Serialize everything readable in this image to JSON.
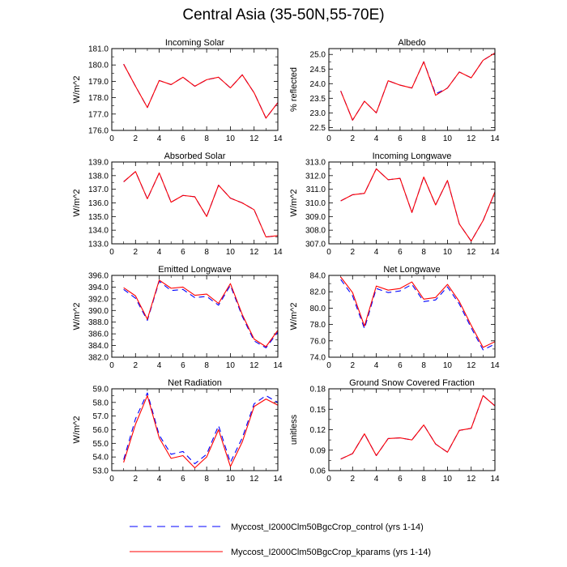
{
  "figure": {
    "title": "Central Asia (35-50N,55-70E)"
  },
  "colors": {
    "control": "#0000ff",
    "kparams": "#ff0000",
    "axis": "#000000"
  },
  "legend": [
    {
      "label": "Myccost_I2000Clm50BgcCrop_control (yrs 1-14)",
      "style": "dashed",
      "color": "#0000ff"
    },
    {
      "label": "Myccost_I2000Clm50BgcCrop_kparams (yrs 1-14)",
      "style": "solid",
      "color": "#ff0000"
    }
  ],
  "chart_data": [
    {
      "type": "line",
      "title": "Incoming Solar",
      "ylabel": "W/m^2",
      "xlim": [
        0,
        14
      ],
      "ylim": [
        176.0,
        181.0
      ],
      "xticks": [
        0,
        2,
        4,
        6,
        8,
        10,
        12,
        14
      ],
      "yticks": [
        "176.0",
        "177.0",
        "178.0",
        "179.0",
        "180.0",
        "181.0"
      ],
      "x": [
        1,
        2,
        3,
        4,
        5,
        6,
        7,
        8,
        9,
        10,
        11,
        12,
        13,
        14
      ],
      "series": [
        {
          "name": "Myccost_I2000Clm50BgcCrop_control (yrs 1-14)",
          "values": [
            180.05,
            178.7,
            177.4,
            179.05,
            178.8,
            179.25,
            178.7,
            179.1,
            179.25,
            178.6,
            179.4,
            178.3,
            176.75,
            177.7
          ]
        },
        {
          "name": "Myccost_I2000Clm50BgcCrop_kparams (yrs 1-14)",
          "values": [
            180.05,
            178.7,
            177.4,
            179.05,
            178.8,
            179.25,
            178.7,
            179.1,
            179.25,
            178.6,
            179.4,
            178.3,
            176.75,
            177.7
          ]
        }
      ]
    },
    {
      "type": "line",
      "title": "Albedo",
      "ylabel": "% reflected",
      "xlim": [
        0,
        14
      ],
      "ylim": [
        22.4,
        25.2
      ],
      "xticks": [
        0,
        2,
        4,
        6,
        8,
        10,
        12,
        14
      ],
      "yticks": [
        "22.5",
        "23.0",
        "23.5",
        "24.0",
        "24.5",
        "25.0"
      ],
      "x": [
        1,
        2,
        3,
        4,
        5,
        6,
        7,
        8,
        9,
        10,
        11,
        12,
        13,
        14
      ],
      "series": [
        {
          "name": "Myccost_I2000Clm50BgcCrop_control (yrs 1-14)",
          "values": [
            23.75,
            22.75,
            23.4,
            23.0,
            24.1,
            23.95,
            23.85,
            24.75,
            23.65,
            23.85,
            24.4,
            24.2,
            24.8,
            25.05
          ]
        },
        {
          "name": "Myccost_I2000Clm50BgcCrop_kparams (yrs 1-14)",
          "values": [
            23.75,
            22.75,
            23.4,
            23.0,
            24.1,
            23.95,
            23.85,
            24.75,
            23.6,
            23.85,
            24.4,
            24.2,
            24.8,
            25.05
          ]
        }
      ]
    },
    {
      "type": "line",
      "title": "Absorbed Solar",
      "ylabel": "W/m^2",
      "xlim": [
        0,
        14
      ],
      "ylim": [
        133.0,
        139.0
      ],
      "xticks": [
        0,
        2,
        4,
        6,
        8,
        10,
        12,
        14
      ],
      "yticks": [
        "133.0",
        "134.0",
        "135.0",
        "136.0",
        "137.0",
        "138.0",
        "139.0"
      ],
      "x": [
        1,
        2,
        3,
        4,
        5,
        6,
        7,
        8,
        9,
        10,
        11,
        12,
        13,
        14
      ],
      "series": [
        {
          "name": "Myccost_I2000Clm50BgcCrop_control (yrs 1-14)",
          "values": [
            137.55,
            138.3,
            136.3,
            138.2,
            136.05,
            136.55,
            136.45,
            135.0,
            137.3,
            136.35,
            136.0,
            135.5,
            133.5,
            133.6
          ]
        },
        {
          "name": "Myccost_I2000Clm50BgcCrop_kparams (yrs 1-14)",
          "values": [
            137.55,
            138.3,
            136.3,
            138.2,
            136.05,
            136.55,
            136.45,
            135.0,
            137.3,
            136.35,
            136.0,
            135.5,
            133.5,
            133.6
          ]
        }
      ]
    },
    {
      "type": "line",
      "title": "Incoming Longwave",
      "ylabel": "W/m^2",
      "xlim": [
        0,
        14
      ],
      "ylim": [
        307.0,
        313.0
      ],
      "xticks": [
        0,
        2,
        4,
        6,
        8,
        10,
        12,
        14
      ],
      "yticks": [
        "307.0",
        "308.0",
        "309.0",
        "310.0",
        "311.0",
        "312.0",
        "313.0"
      ],
      "x": [
        1,
        2,
        3,
        4,
        5,
        6,
        7,
        8,
        9,
        10,
        11,
        12,
        13,
        14
      ],
      "series": [
        {
          "name": "Myccost_I2000Clm50BgcCrop_control (yrs 1-14)",
          "values": [
            310.15,
            310.6,
            310.7,
            312.5,
            311.7,
            311.8,
            309.3,
            311.9,
            309.85,
            311.65,
            308.45,
            307.2,
            308.7,
            310.8
          ]
        },
        {
          "name": "Myccost_I2000Clm50BgcCrop_kparams (yrs 1-14)",
          "values": [
            310.15,
            310.6,
            310.7,
            312.5,
            311.7,
            311.8,
            309.3,
            311.9,
            309.85,
            311.65,
            308.45,
            307.2,
            308.7,
            310.8
          ]
        }
      ]
    },
    {
      "type": "line",
      "title": "Emitted Longwave",
      "ylabel": "W/m^2",
      "xlim": [
        0,
        14
      ],
      "ylim": [
        382.0,
        396.0
      ],
      "xticks": [
        0,
        2,
        4,
        6,
        8,
        10,
        12,
        14
      ],
      "yticks": [
        "382.0",
        "384.0",
        "386.0",
        "388.0",
        "390.0",
        "392.0",
        "394.0",
        "396.0"
      ],
      "x": [
        1,
        2,
        3,
        4,
        5,
        6,
        7,
        8,
        9,
        10,
        11,
        12,
        13,
        14
      ],
      "series": [
        {
          "name": "Myccost_I2000Clm50BgcCrop_control (yrs 1-14)",
          "values": [
            393.6,
            392.1,
            388.3,
            395.0,
            393.4,
            393.6,
            392.2,
            392.4,
            390.9,
            394.3,
            389.0,
            384.8,
            383.6,
            386.3
          ]
        },
        {
          "name": "Myccost_I2000Clm50BgcCrop_kparams (yrs 1-14)",
          "values": [
            393.9,
            392.5,
            388.5,
            395.2,
            393.8,
            394.0,
            392.6,
            392.8,
            391.2,
            394.6,
            389.3,
            385.1,
            383.8,
            386.6
          ]
        }
      ]
    },
    {
      "type": "line",
      "title": "Net Longwave",
      "ylabel": "W/m^2",
      "xlim": [
        0,
        14
      ],
      "ylim": [
        74.0,
        84.0
      ],
      "xticks": [
        0,
        2,
        4,
        6,
        8,
        10,
        12,
        14
      ],
      "yticks": [
        "74.0",
        "76.0",
        "78.0",
        "80.0",
        "82.0",
        "84.0"
      ],
      "x": [
        1,
        2,
        3,
        4,
        5,
        6,
        7,
        8,
        9,
        10,
        11,
        12,
        13,
        14
      ],
      "series": [
        {
          "name": "Myccost_I2000Clm50BgcCrop_control (yrs 1-14)",
          "values": [
            83.5,
            81.5,
            77.5,
            82.4,
            81.9,
            82.1,
            82.9,
            80.8,
            81.0,
            82.6,
            80.5,
            77.6,
            74.9,
            75.6
          ]
        },
        {
          "name": "Myccost_I2000Clm50BgcCrop_kparams (yrs 1-14)",
          "values": [
            83.8,
            81.9,
            77.8,
            82.7,
            82.2,
            82.4,
            83.2,
            81.1,
            81.3,
            82.9,
            80.8,
            77.9,
            75.2,
            75.9
          ]
        }
      ]
    },
    {
      "type": "line",
      "title": "Net Radiation",
      "ylabel": "W/m^2",
      "xlim": [
        0,
        14
      ],
      "ylim": [
        53.0,
        59.0
      ],
      "xticks": [
        0,
        2,
        4,
        6,
        8,
        10,
        12,
        14
      ],
      "yticks": [
        "53.0",
        "54.0",
        "55.0",
        "56.0",
        "57.0",
        "58.0",
        "59.0"
      ],
      "x": [
        1,
        2,
        3,
        4,
        5,
        6,
        7,
        8,
        9,
        10,
        11,
        12,
        13,
        14
      ],
      "series": [
        {
          "name": "Myccost_I2000Clm50BgcCrop_control (yrs 1-14)",
          "values": [
            53.8,
            56.8,
            58.7,
            55.6,
            54.2,
            54.4,
            53.5,
            54.2,
            56.3,
            53.6,
            55.4,
            57.9,
            58.5,
            58.0
          ]
        },
        {
          "name": "Myccost_I2000Clm50BgcCrop_kparams (yrs 1-14)",
          "values": [
            53.6,
            56.4,
            58.5,
            55.4,
            53.9,
            54.1,
            53.2,
            54.0,
            56.0,
            53.3,
            55.1,
            57.7,
            58.25,
            57.8
          ]
        }
      ]
    },
    {
      "type": "line",
      "title": "Ground Snow Covered Fraction",
      "ylabel": "unitless",
      "xlim": [
        0,
        14
      ],
      "ylim": [
        0.06,
        0.18
      ],
      "xticks": [
        0,
        2,
        4,
        6,
        8,
        10,
        12,
        14
      ],
      "yticks": [
        "0.06",
        "0.09",
        "0.12",
        "0.15",
        "0.18"
      ],
      "x": [
        1,
        2,
        3,
        4,
        5,
        6,
        7,
        8,
        9,
        10,
        11,
        12,
        13,
        14
      ],
      "series": [
        {
          "name": "Myccost_I2000Clm50BgcCrop_control (yrs 1-14)",
          "values": [
            0.077,
            0.085,
            0.114,
            0.082,
            0.107,
            0.108,
            0.105,
            0.127,
            0.099,
            0.087,
            0.119,
            0.122,
            0.17,
            0.155
          ]
        },
        {
          "name": "Myccost_I2000Clm50BgcCrop_kparams (yrs 1-14)",
          "values": [
            0.077,
            0.085,
            0.114,
            0.082,
            0.107,
            0.108,
            0.105,
            0.127,
            0.099,
            0.087,
            0.119,
            0.122,
            0.17,
            0.155
          ]
        }
      ]
    }
  ]
}
